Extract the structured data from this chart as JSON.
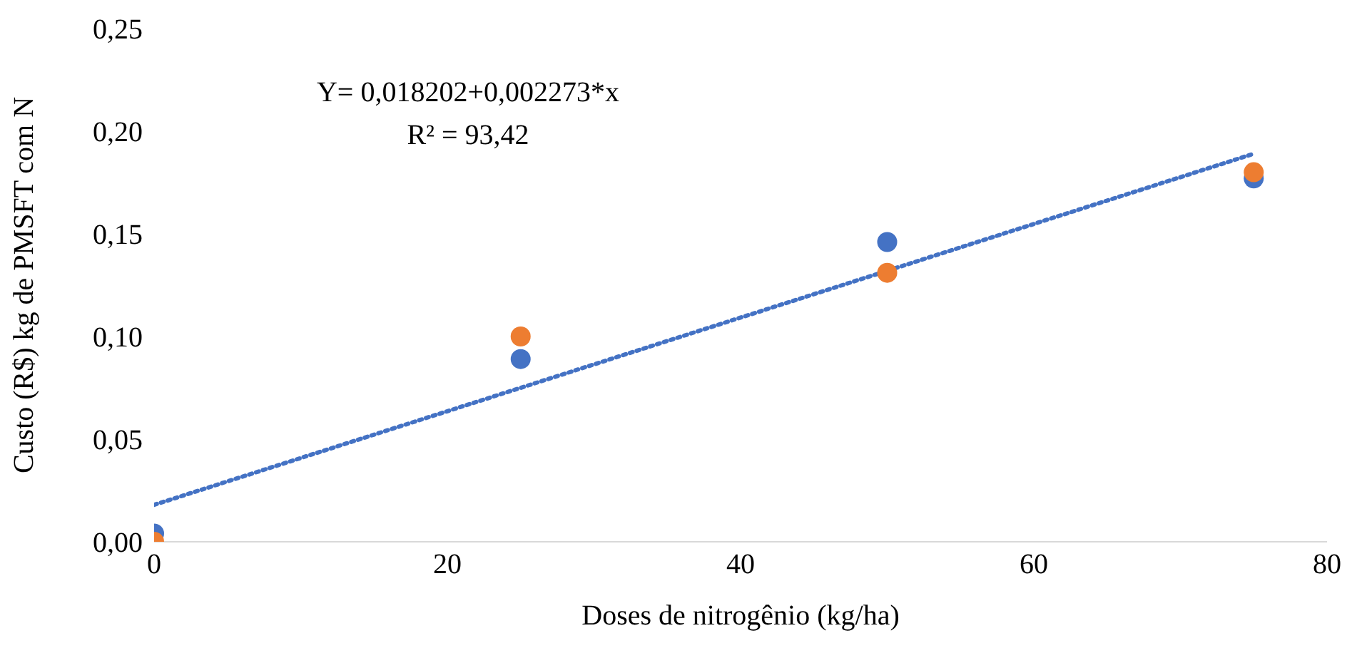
{
  "chart_data": {
    "type": "scatter",
    "xlabel": "Doses de nitrogênio (kg/ha)",
    "ylabel": "Custo (R$) kg de PMSFT com N",
    "annotations": [
      "Y= 0,018202+0,002273*x",
      "R² = 93,42"
    ],
    "x": [
      0,
      25,
      50,
      75
    ],
    "series": [
      {
        "color": "#4472c4",
        "values": [
          0.004,
          0.089,
          0.146,
          0.177
        ]
      },
      {
        "color": "#ed7d31",
        "values": [
          0,
          0.1,
          0.131,
          0.18
        ]
      },
      {
        "type": "line",
        "color": "#4472c4",
        "x": [
          0,
          75
        ],
        "values": [
          0.018,
          0.189
        ],
        "line_style": "dotted",
        "marker": "none"
      }
    ],
    "xlim": [
      0,
      80
    ],
    "xticks": [
      0,
      20,
      40,
      60,
      80
    ],
    "ylim": [
      0,
      0.25
    ],
    "yticks": [
      {
        "value": 0,
        "label": "0,00"
      },
      {
        "value": 0.05,
        "label": "0,05"
      },
      {
        "value": 0.1,
        "label": "0,10"
      },
      {
        "value": 0.15,
        "label": "0,15"
      },
      {
        "value": 0.2,
        "label": "0,20"
      },
      {
        "value": 0.25,
        "label": "0,25"
      }
    ],
    "grid": false,
    "marker": "circle"
  }
}
